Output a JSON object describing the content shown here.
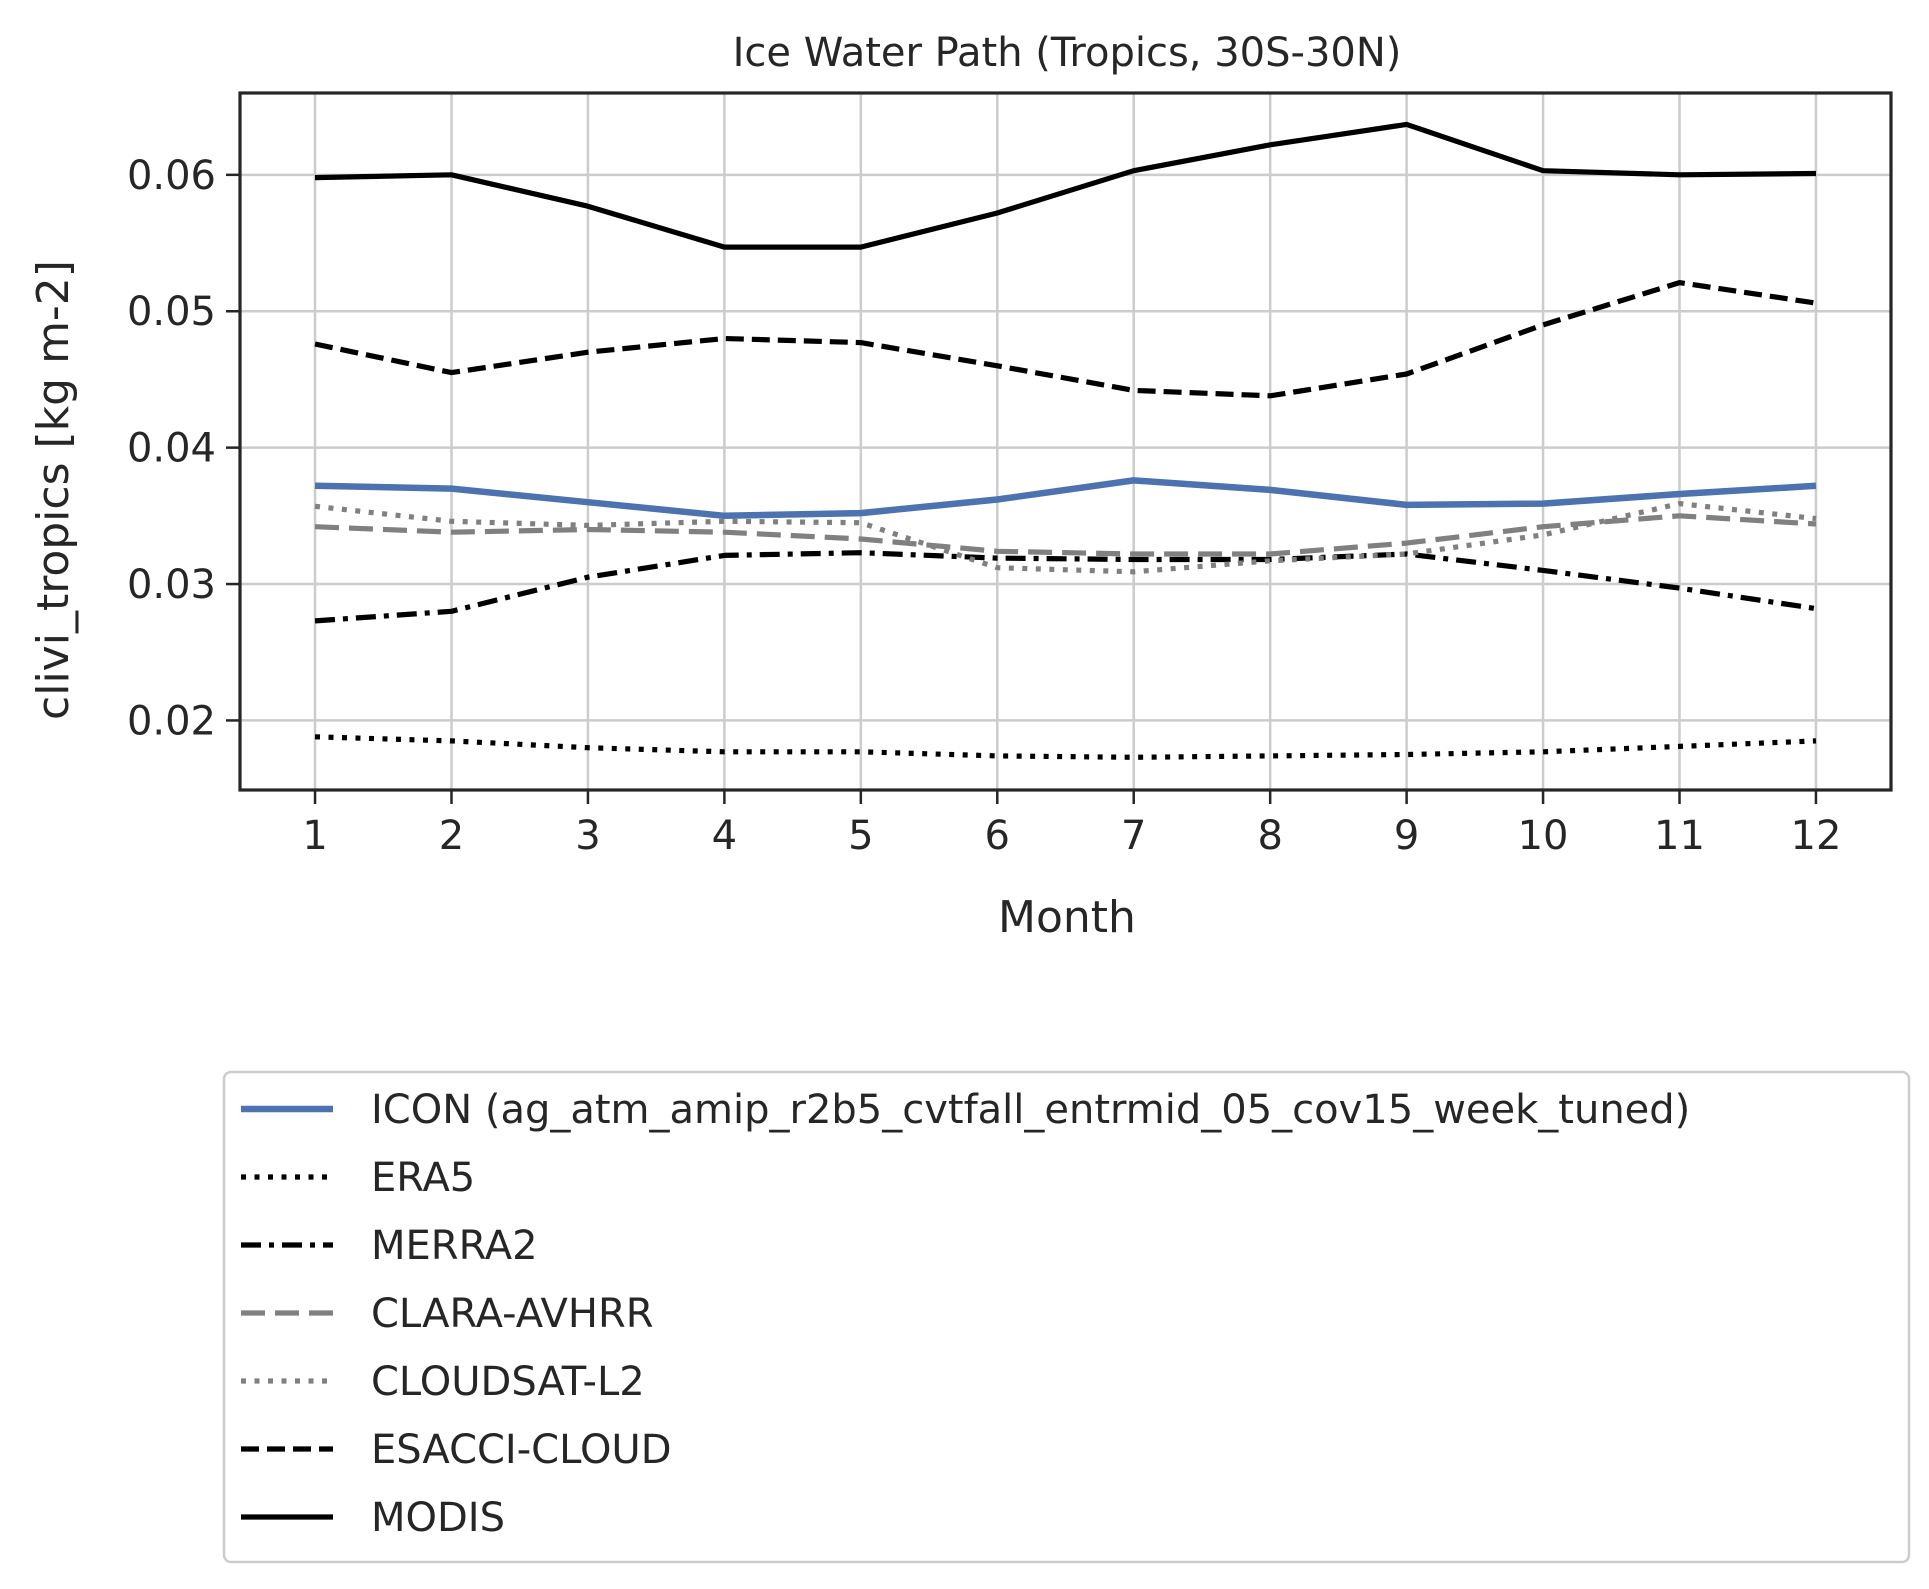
{
  "chart_data": {
    "type": "line",
    "title": "Ice Water Path (Tropics, 30S-30N)",
    "xlabel": "Month",
    "ylabel": "clivi_tropics [kg m-2]",
    "x": [
      1,
      2,
      3,
      4,
      5,
      6,
      7,
      8,
      9,
      10,
      11,
      12
    ],
    "x_ticks": [
      "1",
      "2",
      "3",
      "4",
      "5",
      "6",
      "7",
      "8",
      "9",
      "10",
      "11",
      "12"
    ],
    "y_ticks": [
      "0.02",
      "0.03",
      "0.04",
      "0.05",
      "0.06"
    ],
    "xlim": [
      0.45,
      12.55
    ],
    "ylim": [
      0.0149,
      0.066
    ],
    "grid": true,
    "legend_position": "below plot",
    "series": [
      {
        "name": "ICON (ag_atm_amip_r2b5_cvtfall_entrmid_05_cov15_week_tuned)",
        "color": "#4c72b0",
        "style": "solid",
        "values": [
          0.0372,
          0.037,
          0.036,
          0.035,
          0.0352,
          0.0362,
          0.0376,
          0.0369,
          0.0358,
          0.0359,
          0.0366,
          0.0372
        ]
      },
      {
        "name": "ERA5",
        "color": "#000000",
        "style": "dotted",
        "values": [
          0.0188,
          0.0185,
          0.018,
          0.0177,
          0.0177,
          0.0174,
          0.0173,
          0.0174,
          0.0175,
          0.0177,
          0.0181,
          0.0185
        ]
      },
      {
        "name": "MERRA2",
        "color": "#000000",
        "style": "dashdot",
        "values": [
          0.0273,
          0.028,
          0.0305,
          0.0321,
          0.0323,
          0.0319,
          0.0318,
          0.0318,
          0.0322,
          0.031,
          0.0297,
          0.0282
        ]
      },
      {
        "name": "CLARA-AVHRR",
        "color": "#808080",
        "style": "dashed-long",
        "values": [
          0.0342,
          0.0338,
          0.034,
          0.0338,
          0.0333,
          0.0324,
          0.0322,
          0.0322,
          0.033,
          0.0342,
          0.035,
          0.0344
        ]
      },
      {
        "name": "CLOUDSAT-L2",
        "color": "#808080",
        "style": "dotted",
        "values": [
          0.0357,
          0.0346,
          0.0343,
          0.0346,
          0.0345,
          0.0312,
          0.0309,
          0.0317,
          0.0322,
          0.0336,
          0.0359,
          0.0348
        ]
      },
      {
        "name": "ESACCI-CLOUD",
        "color": "#000000",
        "style": "dashed",
        "values": [
          0.0476,
          0.0455,
          0.047,
          0.048,
          0.0477,
          0.046,
          0.0442,
          0.0438,
          0.0454,
          0.049,
          0.0521,
          0.0506
        ]
      },
      {
        "name": "MODIS",
        "color": "#000000",
        "style": "solid",
        "values": [
          0.0598,
          0.06,
          0.0577,
          0.0547,
          0.0547,
          0.0572,
          0.0603,
          0.0622,
          0.0637,
          0.0603,
          0.06,
          0.0601
        ]
      }
    ]
  }
}
